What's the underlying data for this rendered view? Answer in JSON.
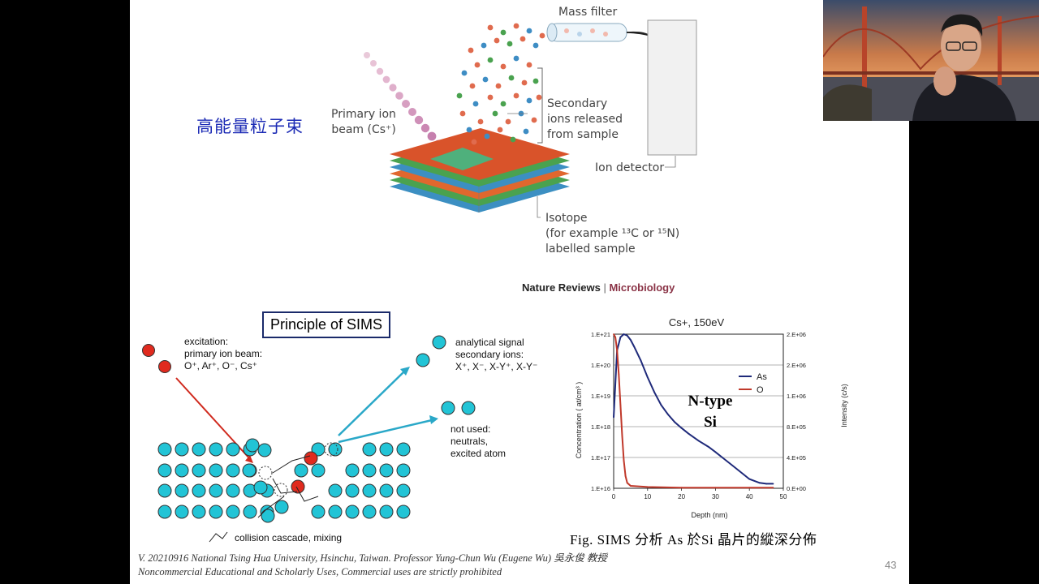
{
  "slide": {
    "cjk_title": "高能量粒子束",
    "mass_filter_label": "Mass filter",
    "primary_ion_label_line1": "Primary ion",
    "primary_ion_label_line2": "beam (Cs⁺)",
    "secondary_label_line1": "Secondary",
    "secondary_label_line2": "ions released",
    "secondary_label_line3": "from sample",
    "ion_detector_label": "Ion detector",
    "isotope_line1": "Isotope",
    "isotope_line2": "(for example ¹³C or ¹⁵N)",
    "isotope_line3": "labelled sample",
    "source_journal": "Nature Reviews",
    "source_sep": "|",
    "source_topic": "Microbiology",
    "principle_title": "Principle of SIMS",
    "excitation_line1": "excitation:",
    "excitation_line2": "primary ion beam:",
    "excitation_line3": "O⁺, Ar⁺, O⁻, Cs⁺",
    "analytical_line1": "analytical signal",
    "analytical_line2": "secondary ions:",
    "analytical_line3": "X⁺, X⁻, X-Y⁺, X-Y⁻",
    "not_used_line1": "not used:",
    "not_used_line2": "neutrals,",
    "not_used_line3": "excited atom",
    "cascade_label": "collision cascade, mixing",
    "ntype_line1": "N-type",
    "ntype_line2": "Si",
    "figure_caption": "Fig. SIMS 分析 As 於Si 晶片的縱深分佈",
    "footer_line1": "V. 20210916 National Tsing Hua University, Hsinchu, Taiwan. Professor Yung-Chun Wu (Eugene Wu) 吳永俊 教授",
    "footer_line2": "Noncommercial Educational and Scholarly Uses, Commercial uses are strictly prohibited",
    "page_number": "43"
  },
  "chart_data": {
    "type": "line",
    "title": "Cs+, 150eV",
    "xlabel": "Depth (nm)",
    "ylabel": "Concentration ( at/cm³ )",
    "y2label": "Intensity (c/s)",
    "xlim": [
      0,
      50
    ],
    "x_ticks": [
      "0",
      "10",
      "20",
      "30",
      "40",
      "50"
    ],
    "y_ticks": [
      "1.E+16",
      "1.E+17",
      "1.E+18",
      "1.E+19",
      "1.E+20",
      "1.E+21"
    ],
    "y2_ticks": [
      "0.E+00",
      "4.E+05",
      "8.E+05",
      "1.E+06",
      "2.E+06",
      "2.E+06"
    ],
    "legend_position": "top-right",
    "grid": true,
    "series": [
      {
        "name": "As",
        "color": "#1f2a7a",
        "x": [
          0,
          1,
          2,
          3,
          4,
          5,
          6,
          8,
          10,
          12,
          14,
          16,
          18,
          20,
          22,
          25,
          28,
          30,
          32,
          35,
          38,
          40,
          43,
          45,
          47
        ],
        "y": [
          2e+18,
          3e+20,
          8e+20,
          1e+21,
          9e+20,
          6.5e+20,
          4e+20,
          1.4e+20,
          4e+19,
          1.3e+19,
          5e+18,
          2.5e+18,
          1.4e+18,
          9e+17,
          6e+17,
          3.5e+17,
          2.2e+17,
          1.5e+17,
          1e+17,
          5.5e+16,
          3e+16,
          2e+16,
          1.5e+16,
          1.4e+16,
          1.4e+16
        ]
      },
      {
        "name": "O",
        "color": "#c0392b",
        "x": [
          0,
          0.5,
          1,
          1.5,
          2,
          2.5,
          3,
          3.5,
          4,
          5,
          10,
          20,
          30,
          40,
          47
        ],
        "y": [
          1e+21,
          8e+20,
          3e+20,
          5e+19,
          5e+18,
          5e+17,
          8e+16,
          2.5e+16,
          1.5e+16,
          1.2e+16,
          1.1e+16,
          1.05e+16,
          1.05e+16,
          1.05e+16,
          1.05e+16
        ]
      }
    ]
  },
  "colors": {
    "title_blue": "#1c2bb5",
    "atom_cyan": "#22c4d6",
    "atom_red": "#e02a1e",
    "arrow_red": "#d02a1e",
    "arrow_cyan": "#2aa8c8"
  },
  "icons": {
    "webcam": "presenter-video-feed",
    "mass_filter": "mass-filter-tube",
    "detector": "ion-detector-cylinder",
    "sample": "layered-sample-block"
  }
}
